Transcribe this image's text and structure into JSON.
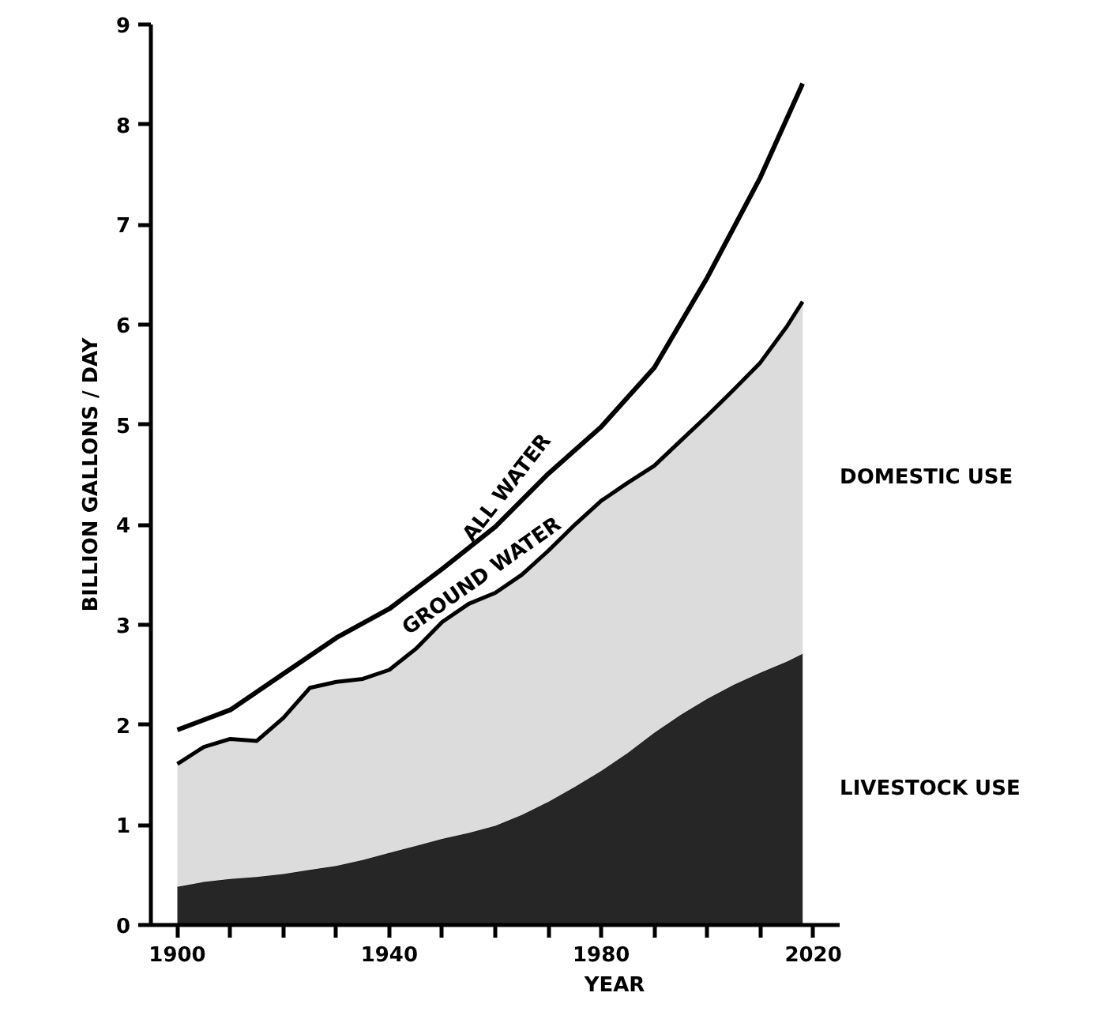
{
  "chart_data": {
    "type": "area",
    "stacked": true,
    "xlabel": "YEAR",
    "ylabel": "BILLION GALLONS / DAY",
    "x": [
      1900,
      1905,
      1910,
      1915,
      1920,
      1925,
      1930,
      1935,
      1940,
      1945,
      1950,
      1955,
      1960,
      1965,
      1970,
      1975,
      1980,
      1985,
      1990,
      1995,
      2000,
      2005,
      2010,
      2015,
      2018
    ],
    "series": [
      {
        "name": "LIVESTOCK USE",
        "color": "#262626",
        "values": [
          0.38,
          0.43,
          0.46,
          0.48,
          0.51,
          0.55,
          0.59,
          0.65,
          0.72,
          0.79,
          0.86,
          0.92,
          0.99,
          1.1,
          1.23,
          1.38,
          1.54,
          1.72,
          1.92,
          2.1,
          2.26,
          2.4,
          2.52,
          2.63,
          2.71
        ]
      },
      {
        "name": "DOMESTIC USE",
        "color": "#dcdcdc",
        "values": [
          1.23,
          1.35,
          1.4,
          1.36,
          1.56,
          1.82,
          1.84,
          1.81,
          1.83,
          1.97,
          2.17,
          2.29,
          2.33,
          2.4,
          2.51,
          2.62,
          2.7,
          2.7,
          2.67,
          2.74,
          2.83,
          2.95,
          3.1,
          3.35,
          3.52
        ]
      },
      {
        "name": "ALL WATER",
        "type": "line",
        "color": "#000000",
        "x": [
          1900,
          1910,
          1920,
          1930,
          1940,
          1950,
          1960,
          1970,
          1980,
          1990,
          2000,
          2010,
          2018
        ],
        "values": [
          1.95,
          2.15,
          2.51,
          2.87,
          3.16,
          3.56,
          3.98,
          4.51,
          4.98,
          5.57,
          6.47,
          7.47,
          8.41
        ]
      }
    ],
    "annotations": [
      {
        "text": "GROUND WATER",
        "x": 1960,
        "y": 3.32
      }
    ],
    "xlim": [
      1895,
      2025
    ],
    "ylim": [
      0,
      9
    ],
    "xticks": [
      1900,
      {
        "value": 1910,
        "label": null
      },
      {
        "value": 1920,
        "label": null
      },
      {
        "value": 1930,
        "label": null
      },
      1940,
      {
        "value": 1950,
        "label": null
      },
      {
        "value": 1960,
        "label": null
      },
      {
        "value": 1970,
        "label": null
      },
      1980,
      {
        "value": 1990,
        "label": null
      },
      {
        "value": 2000,
        "label": null
      },
      {
        "value": 2010,
        "label": null
      },
      2020
    ],
    "yticks": [
      0,
      1,
      2,
      3,
      4,
      5,
      6,
      7,
      8,
      9
    ],
    "grid": false
  }
}
